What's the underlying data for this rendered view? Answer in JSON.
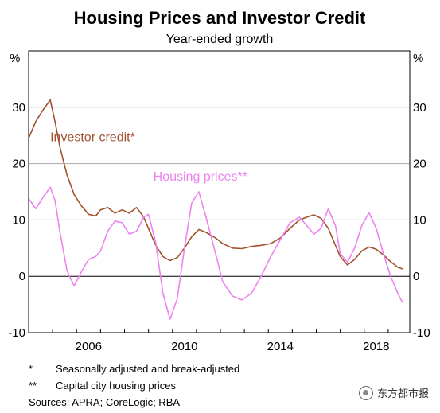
{
  "chart_data": {
    "type": "line",
    "title": "Housing Prices and Investor Credit",
    "subtitle": "Year-ended growth",
    "ylabel_left": "%",
    "ylabel_right": "%",
    "ylim": [
      -10,
      40
    ],
    "yticks": [
      -10,
      0,
      10,
      20,
      30
    ],
    "xlim": [
      2003.0,
      2018.9
    ],
    "xticks": [
      2006,
      2010,
      2014,
      2018
    ],
    "grid": true,
    "series": [
      {
        "name": "Investor credit*",
        "color": "#a0522d",
        "label_pos": [
          2003.9,
          24.0
        ],
        "x": [
          2003.0,
          2003.3,
          2003.6,
          2003.9,
          2004.1,
          2004.3,
          2004.6,
          2004.9,
          2005.2,
          2005.5,
          2005.8,
          2006.0,
          2006.3,
          2006.6,
          2006.9,
          2007.2,
          2007.5,
          2007.8,
          2008.0,
          2008.3,
          2008.6,
          2008.9,
          2009.2,
          2009.5,
          2009.8,
          2010.1,
          2010.4,
          2010.8,
          2011.1,
          2011.5,
          2011.9,
          2012.3,
          2012.7,
          2013.1,
          2013.5,
          2013.9,
          2014.3,
          2014.6,
          2014.9,
          2015.2,
          2015.5,
          2015.8,
          2016.0,
          2016.3,
          2016.6,
          2016.9,
          2017.2,
          2017.5,
          2017.8,
          2018.1,
          2018.4,
          2018.6
        ],
        "values": [
          24.5,
          27.5,
          29.5,
          31.3,
          27.5,
          23,
          18,
          14.5,
          12.5,
          11,
          10.7,
          11.8,
          12.2,
          11.2,
          11.8,
          11.2,
          12.2,
          10.5,
          8.5,
          5.5,
          3.5,
          2.8,
          3.3,
          5,
          7,
          8.3,
          7.8,
          6.8,
          5.8,
          5.0,
          4.9,
          5.3,
          5.5,
          5.8,
          6.8,
          8.5,
          10.0,
          10.5,
          10.9,
          10.3,
          8.5,
          5.5,
          3.5,
          2.0,
          3.0,
          4.5,
          5.2,
          4.8,
          3.8,
          2.6,
          1.6,
          1.3
        ]
      },
      {
        "name": "Housing prices**",
        "color": "#ee82ee",
        "label_pos": [
          2008.2,
          17.0
        ],
        "x": [
          2003.0,
          2003.3,
          2003.6,
          2003.9,
          2004.1,
          2004.3,
          2004.6,
          2004.9,
          2005.2,
          2005.5,
          2005.8,
          2006.0,
          2006.3,
          2006.6,
          2006.9,
          2007.2,
          2007.5,
          2007.8,
          2008.0,
          2008.3,
          2008.6,
          2008.9,
          2009.2,
          2009.5,
          2009.8,
          2010.1,
          2010.4,
          2010.8,
          2011.1,
          2011.5,
          2011.9,
          2012.3,
          2012.7,
          2013.1,
          2013.5,
          2013.9,
          2014.3,
          2014.6,
          2014.9,
          2015.2,
          2015.5,
          2015.8,
          2016.0,
          2016.3,
          2016.6,
          2016.9,
          2017.2,
          2017.5,
          2017.8,
          2018.1,
          2018.4,
          2018.6
        ],
        "values": [
          13.8,
          12.0,
          14.0,
          15.8,
          13.5,
          8.0,
          1.0,
          -1.7,
          0.8,
          3.0,
          3.5,
          4.5,
          8.0,
          9.8,
          9.5,
          7.5,
          8.0,
          10.5,
          11.0,
          6.0,
          -3.0,
          -7.6,
          -4.0,
          5.0,
          13.0,
          15.0,
          10.5,
          4.0,
          -1.0,
          -3.5,
          -4.2,
          -3.0,
          0.0,
          3.5,
          6.5,
          9.5,
          10.5,
          9.0,
          7.5,
          8.5,
          12.0,
          9.0,
          4.0,
          2.5,
          5.0,
          9.0,
          11.3,
          8.5,
          4.0,
          0.0,
          -3.0,
          -4.7
        ]
      }
    ]
  },
  "notes": [
    {
      "mark": "*",
      "text": "Seasonally adjusted and break-adjusted"
    },
    {
      "mark": "**",
      "text": "Capital city housing prices"
    }
  ],
  "sources": "Sources:  APRA; CoreLogic; RBA",
  "watermark": "东方都市报"
}
